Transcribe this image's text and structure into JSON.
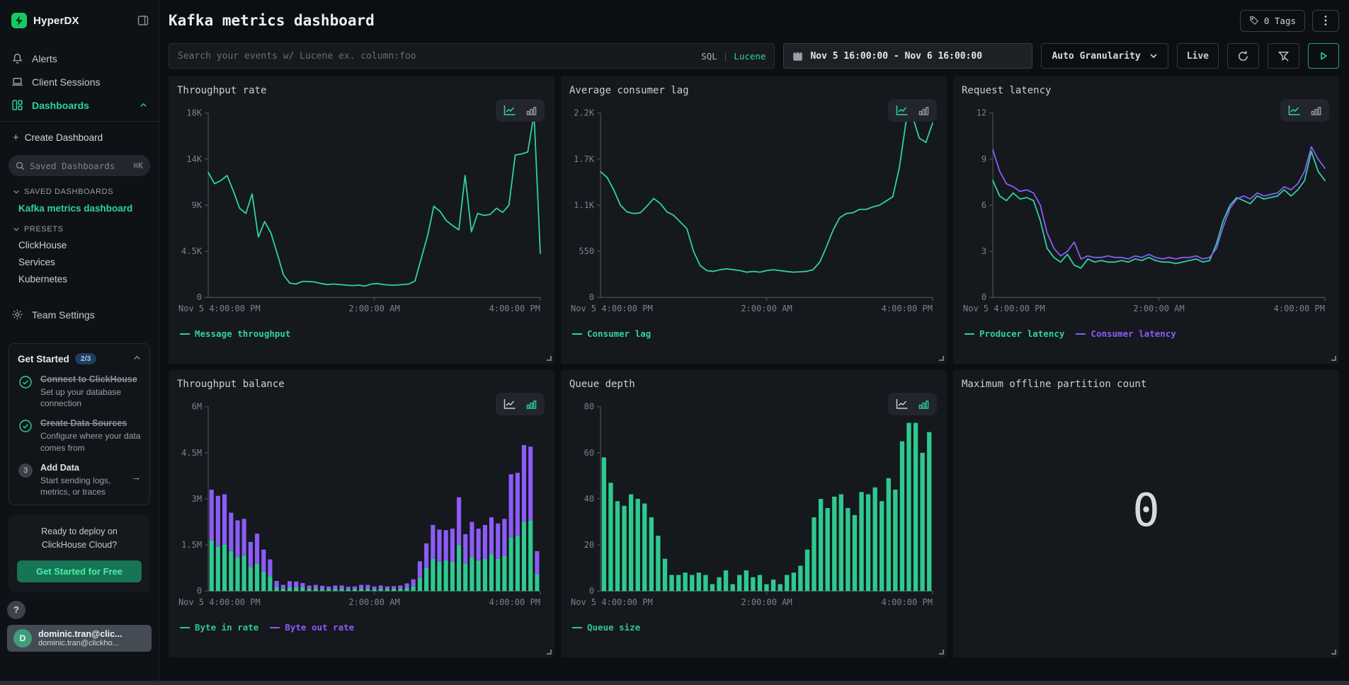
{
  "colors": {
    "green": "#2ed3a0",
    "purple": "#8b5cf6",
    "axis": "#4a5057",
    "label": "#7b828a"
  },
  "sidebar": {
    "logo": "HyperDX",
    "nav": [
      {
        "label": "Alerts"
      },
      {
        "label": "Client Sessions"
      },
      {
        "label": "Dashboards"
      }
    ],
    "create_dashboard": "Create Dashboard",
    "search": {
      "placeholder": "Saved Dashboards",
      "shortcut": "⌘K"
    },
    "saved_section": "SAVED DASHBOARDS",
    "saved_items": [
      {
        "label": "Kafka metrics dashboard"
      }
    ],
    "presets_section": "PRESETS",
    "presets": [
      {
        "label": "ClickHouse"
      },
      {
        "label": "Services"
      },
      {
        "label": "Kubernetes"
      }
    ],
    "team_settings": "Team Settings",
    "get_started": {
      "title": "Get Started",
      "badge": "2/3",
      "steps": [
        {
          "title": "Connect to ClickHouse",
          "desc": "Set up your database connection"
        },
        {
          "title": "Create Data Sources",
          "desc": "Configure where your data comes from"
        },
        {
          "num": "3",
          "title": "Add Data",
          "desc": "Start sending logs, metrics, or traces",
          "arrow": "→"
        }
      ]
    },
    "deploy_card": {
      "line1": "Ready to deploy on",
      "line2": "ClickHouse Cloud?",
      "cta": "Get Started for Free"
    },
    "help_label": "?",
    "user": {
      "initial": "D",
      "name": "dominic.tran@clic...",
      "email": "dominic.tran@clickho..."
    }
  },
  "header": {
    "title": "Kafka metrics dashboard",
    "tags_label": "0 Tags"
  },
  "toolbar": {
    "search_placeholder": "Search your events w/ Lucene ex. column:foo",
    "sql_label": "SQL",
    "divider": "|",
    "lucene_label": "Lucene",
    "date_range": "Nov 5 16:00:00 - Nov 6 16:00:00",
    "granularity": "Auto Granularity",
    "live_label": "Live"
  },
  "chart_data": [
    {
      "type": "line",
      "title": "Throughput rate",
      "ymax": 18000,
      "yticks": [
        [
          0,
          "0"
        ],
        [
          4500,
          "4.5K"
        ],
        [
          9000,
          "9K"
        ],
        [
          13500,
          "14K"
        ],
        [
          18000,
          "18K"
        ]
      ],
      "xticks": [
        "Nov 5 4:00:00 PM",
        "2:00:00 AM",
        "4:00:00 PM"
      ],
      "series": [
        {
          "name": "Message throughput",
          "color": "#2ed3a0",
          "values": [
            12200,
            11100,
            11400,
            11900,
            10400,
            8700,
            8200,
            10100,
            5900,
            7400,
            6300,
            4300,
            2200,
            1400,
            1300,
            1550,
            1550,
            1500,
            1350,
            1250,
            1300,
            1250,
            1200,
            1150,
            1200,
            1100,
            1300,
            1350,
            1250,
            1200,
            1200,
            1250,
            1300,
            1600,
            3800,
            6000,
            8900,
            8400,
            7500,
            7000,
            6600,
            11900,
            6400,
            8200,
            8000,
            8100,
            8700,
            8300,
            9000,
            13900,
            14000,
            14200,
            17900,
            4300
          ]
        }
      ]
    },
    {
      "type": "line",
      "title": "Average consumer lag",
      "ymax": 2200,
      "yticks": [
        [
          0,
          "0"
        ],
        [
          550,
          "550"
        ],
        [
          1100,
          "1.1K"
        ],
        [
          1650,
          "1.7K"
        ],
        [
          2200,
          "2.2K"
        ]
      ],
      "xticks": [
        "Nov 5 4:00:00 PM",
        "2:00:00 AM",
        "4:00:00 PM"
      ],
      "series": [
        {
          "name": "Consumer lag",
          "color": "#2ed3a0",
          "values": [
            1500,
            1430,
            1280,
            1100,
            1020,
            1000,
            1010,
            1090,
            1180,
            1120,
            1020,
            980,
            900,
            820,
            550,
            380,
            320,
            310,
            330,
            340,
            330,
            320,
            300,
            310,
            300,
            320,
            330,
            320,
            310,
            300,
            305,
            310,
            330,
            420,
            600,
            800,
            950,
            1000,
            1010,
            1050,
            1050,
            1080,
            1100,
            1150,
            1200,
            1550,
            2100,
            2150,
            1900,
            1850,
            2080
          ]
        }
      ]
    },
    {
      "type": "line",
      "title": "Request latency",
      "ymax": 12,
      "yticks": [
        [
          0,
          "0"
        ],
        [
          3,
          "3"
        ],
        [
          6,
          "6"
        ],
        [
          9,
          "9"
        ],
        [
          12,
          "12"
        ]
      ],
      "xticks": [
        "Nov 5 4:00:00 PM",
        "2:00:00 AM",
        "4:00:00 PM"
      ],
      "series": [
        {
          "name": "Producer latency",
          "color": "#2ed3a0",
          "values": [
            7.6,
            6.6,
            6.3,
            6.8,
            6.4,
            6.5,
            6.3,
            5.0,
            3.2,
            2.6,
            2.3,
            2.8,
            2.1,
            1.9,
            2.5,
            2.3,
            2.4,
            2.3,
            2.3,
            2.4,
            2.3,
            2.5,
            2.4,
            2.6,
            2.4,
            2.3,
            2.3,
            2.2,
            2.3,
            2.4,
            2.5,
            2.3,
            2.4,
            3.5,
            5.0,
            6.0,
            6.5,
            6.3,
            6.1,
            6.6,
            6.4,
            6.5,
            6.6,
            7.0,
            6.6,
            7.0,
            7.6,
            9.5,
            8.2,
            7.6
          ]
        },
        {
          "name": "Consumer latency",
          "color": "#8b5cf6",
          "values": [
            9.6,
            8.2,
            7.4,
            7.2,
            6.9,
            7.0,
            6.8,
            6.0,
            4.2,
            3.2,
            2.7,
            3.0,
            3.6,
            2.5,
            2.7,
            2.6,
            2.6,
            2.7,
            2.6,
            2.6,
            2.5,
            2.7,
            2.6,
            2.8,
            2.6,
            2.5,
            2.6,
            2.5,
            2.6,
            2.6,
            2.7,
            2.5,
            2.6,
            3.2,
            4.6,
            5.8,
            6.4,
            6.6,
            6.4,
            6.8,
            6.6,
            6.7,
            6.8,
            7.2,
            7.0,
            7.4,
            8.2,
            9.8,
            9.0,
            8.4
          ]
        }
      ]
    },
    {
      "type": "stacked-bar",
      "title": "Throughput balance",
      "ymax": 6,
      "yticks": [
        [
          0,
          "0"
        ],
        [
          1.5,
          "1.5M"
        ],
        [
          3,
          "3M"
        ],
        [
          4.5,
          "4.5M"
        ],
        [
          6,
          "6M"
        ]
      ],
      "xticks": [
        "Nov 5 4:00:00 PM",
        "2:00:00 AM",
        "4:00:00 PM"
      ],
      "series": [
        {
          "name": "Byte in rate",
          "color": "#2ec98f",
          "values": [
            1.65,
            1.45,
            1.52,
            1.3,
            1.1,
            1.15,
            0.78,
            0.9,
            0.63,
            0.48,
            0.13,
            0.08,
            0.12,
            0.13,
            0.12,
            0.08,
            0.08,
            0.07,
            0.07,
            0.08,
            0.08,
            0.06,
            0.07,
            0.08,
            0.08,
            0.07,
            0.08,
            0.07,
            0.08,
            0.08,
            0.1,
            0.15,
            0.42,
            0.75,
            1.05,
            0.95,
            1.0,
            0.95,
            1.5,
            0.9,
            1.1,
            1.0,
            1.05,
            1.2,
            1.05,
            1.15,
            1.75,
            1.8,
            2.25,
            2.3,
            0.55
          ]
        },
        {
          "name": "Byte out rate",
          "color": "#8b5cf6",
          "values": [
            1.65,
            1.65,
            1.63,
            1.25,
            1.2,
            1.2,
            0.82,
            0.97,
            0.72,
            0.55,
            0.2,
            0.12,
            0.2,
            0.18,
            0.14,
            0.1,
            0.12,
            0.1,
            0.08,
            0.1,
            0.1,
            0.08,
            0.08,
            0.12,
            0.12,
            0.08,
            0.1,
            0.08,
            0.08,
            0.1,
            0.15,
            0.23,
            0.55,
            0.8,
            1.1,
            1.05,
            0.98,
            1.08,
            1.55,
            0.95,
            1.15,
            1.03,
            1.1,
            1.2,
            1.15,
            1.2,
            2.05,
            2.05,
            2.5,
            2.4,
            0.75
          ]
        }
      ]
    },
    {
      "type": "bar",
      "title": "Queue depth",
      "ymax": 80,
      "yticks": [
        [
          0,
          "0"
        ],
        [
          20,
          "20"
        ],
        [
          40,
          "40"
        ],
        [
          60,
          "60"
        ],
        [
          80,
          "80"
        ]
      ],
      "xticks": [
        "Nov 5 4:00:00 PM",
        "2:00:00 AM",
        "4:00:00 PM"
      ],
      "series": [
        {
          "name": "Queue size",
          "color": "#2ec98f",
          "values": [
            58,
            47,
            39,
            37,
            42,
            40,
            38,
            32,
            24,
            14,
            7,
            7,
            8,
            7,
            8,
            7,
            3,
            6,
            9,
            3,
            7,
            9,
            6,
            7,
            3,
            5,
            3,
            7,
            8,
            11,
            18,
            32,
            40,
            36,
            41,
            42,
            36,
            33,
            43,
            42,
            45,
            39,
            49,
            44,
            65,
            73,
            73,
            60,
            69
          ]
        }
      ]
    },
    {
      "type": "number",
      "title": "Maximum offline partition count",
      "value": "0"
    }
  ]
}
